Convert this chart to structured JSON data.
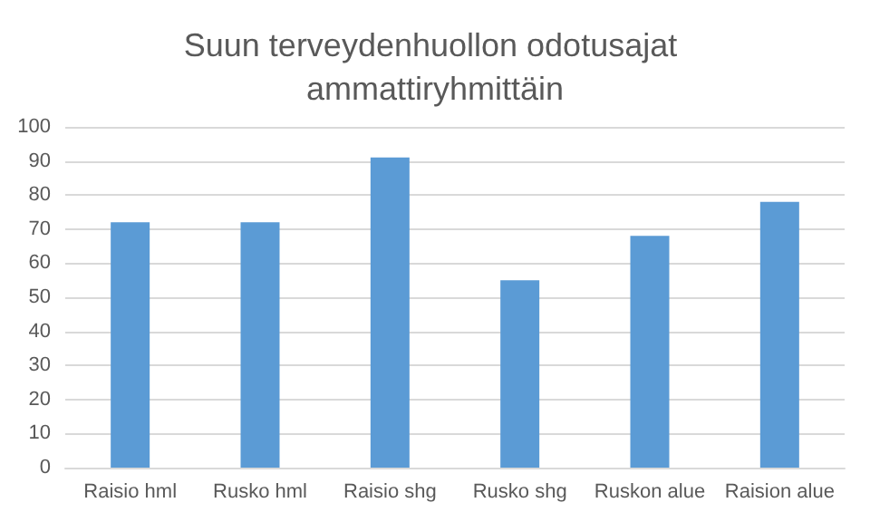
{
  "chart_data": {
    "type": "bar",
    "title": "Suun terveydenhuollon odotusajat ammattiryhmittäin",
    "categories": [
      "Raisio hml",
      "Rusko hml",
      "Raisio shg",
      "Rusko shg",
      "Ruskon alue",
      "Raision alue"
    ],
    "values": [
      72,
      72,
      91,
      55,
      68,
      78
    ],
    "color": "#5b9bd5",
    "ylim": [
      0,
      100
    ],
    "yticks": [
      0,
      10,
      20,
      30,
      40,
      50,
      60,
      70,
      80,
      90,
      100
    ],
    "grid": "y"
  }
}
